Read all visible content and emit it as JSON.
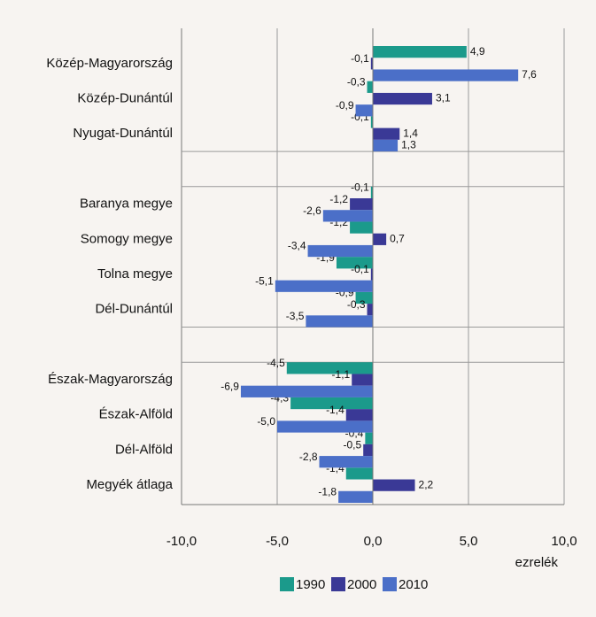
{
  "chart_data": {
    "type": "bar",
    "orientation": "horizontal",
    "categories": [
      "Közép-Magyarország",
      "Közép-Dunántúl",
      "Nyugat-Dunántúl",
      null,
      "Baranya megye",
      "Somogy megye",
      "Tolna megye",
      "Dél-Dunántúl",
      null,
      "Észak-Magyarország",
      "Észak-Alföld",
      "Dél-Alföld",
      "Megyék átlaga"
    ],
    "series": [
      {
        "name": "1990",
        "color": "#1b9a8b",
        "values": [
          4.9,
          -0.3,
          -0.1,
          null,
          -0.1,
          -1.2,
          -1.9,
          -0.9,
          null,
          -4.5,
          -4.3,
          -0.4,
          -1.4
        ],
        "value_labels": [
          "4,9",
          "-0,3",
          "-0,1",
          null,
          "-0,1",
          "-1,2",
          "-1,9",
          "-0,9",
          null,
          "-4,5",
          "-4,3",
          "-0,4",
          "-1,4"
        ]
      },
      {
        "name": "2000",
        "color": "#3a3996",
        "values": [
          -0.1,
          3.1,
          1.4,
          null,
          -1.2,
          0.7,
          -0.1,
          -0.3,
          null,
          -1.1,
          -1.4,
          -0.5,
          2.2
        ],
        "value_labels": [
          "-0,1",
          "3,1",
          "1,4",
          null,
          "-1,2",
          "0,7",
          "-0,1",
          "-0,3",
          null,
          "-1,1",
          "-1,4",
          "-0,5",
          "2,2"
        ]
      },
      {
        "name": "2010",
        "color": "#4b6fc8",
        "values": [
          7.6,
          -0.9,
          1.3,
          null,
          -2.6,
          -3.4,
          -5.1,
          -3.5,
          null,
          -6.9,
          -5.0,
          -2.8,
          -1.8
        ],
        "value_labels": [
          "7,6",
          "-0,9",
          "1,3",
          null,
          "-2,6",
          "-3,4",
          "-5,1",
          "-3,5",
          null,
          "-6,9",
          "-5,0",
          "-2,8",
          "-1,8"
        ]
      }
    ],
    "xlabel": "ezrelék",
    "xlim": [
      -10,
      10
    ],
    "xticks": [
      {
        "value": -10,
        "label": "-10,0"
      },
      {
        "value": -5,
        "label": "-5,0"
      },
      {
        "value": 0,
        "label": "0,0"
      },
      {
        "value": 5,
        "label": "5,0"
      },
      {
        "value": 10,
        "label": "10,0"
      }
    ],
    "grid": true,
    "legend": "bottom"
  }
}
